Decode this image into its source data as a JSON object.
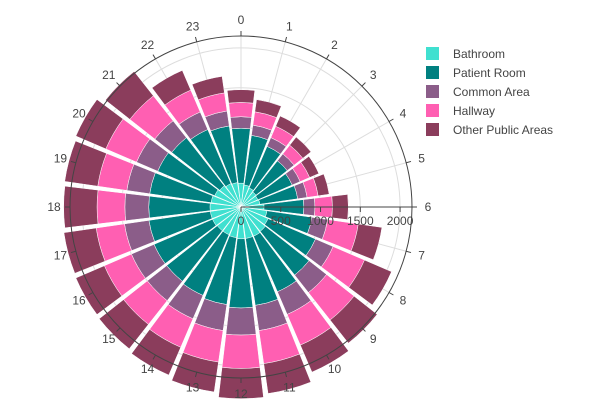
{
  "chart_data": {
    "type": "barpolar",
    "direction": "clockwise",
    "rotation_start": "top",
    "angular_categories": [
      "0",
      "1",
      "2",
      "3",
      "4",
      "5",
      "6",
      "7",
      "8",
      "9",
      "10",
      "11",
      "12",
      "13",
      "14",
      "15",
      "16",
      "17",
      "18",
      "19",
      "20",
      "21",
      "22",
      "23"
    ],
    "radial_range": [
      0,
      2150
    ],
    "radial_ticks": [
      "0",
      "500",
      "1000",
      "1500",
      "2000"
    ],
    "radial_tick_values": [
      0,
      500,
      1000,
      1500,
      2000
    ],
    "series": [
      {
        "name": "Bathroom",
        "color": "#40e0d0",
        "values": [
          300,
          280,
          260,
          240,
          230,
          240,
          290,
          330,
          370,
          390,
          400,
          400,
          400,
          390,
          380,
          380,
          390,
          390,
          390,
          380,
          360,
          340,
          320,
          310
        ]
      },
      {
        "name": "Patient Room",
        "color": "#008080",
        "values": [
          690,
          630,
          570,
          500,
          470,
          480,
          500,
          570,
          650,
          700,
          760,
          850,
          870,
          850,
          830,
          810,
          800,
          780,
          770,
          780,
          780,
          770,
          740,
          720
        ]
      },
      {
        "name": "Common Area",
        "color": "#8b5d89",
        "values": [
          145,
          130,
          120,
          110,
          110,
          120,
          140,
          200,
          240,
          280,
          310,
          320,
          340,
          330,
          320,
          310,
          310,
          310,
          300,
          290,
          290,
          270,
          240,
          190
        ]
      },
      {
        "name": "Hallway",
        "color": "#ff5fb2",
        "values": [
          180,
          170,
          155,
          140,
          130,
          140,
          220,
          390,
          430,
          440,
          420,
          420,
          420,
          400,
          390,
          380,
          370,
          360,
          350,
          370,
          420,
          400,
          300,
          230
        ]
      },
      {
        "name": "Other Public Areas",
        "color": "#8b3d5c",
        "values": [
          160,
          155,
          140,
          130,
          125,
          140,
          200,
          300,
          370,
          370,
          370,
          380,
          380,
          380,
          380,
          390,
          390,
          410,
          420,
          420,
          410,
          390,
          270,
          210
        ]
      }
    ]
  }
}
